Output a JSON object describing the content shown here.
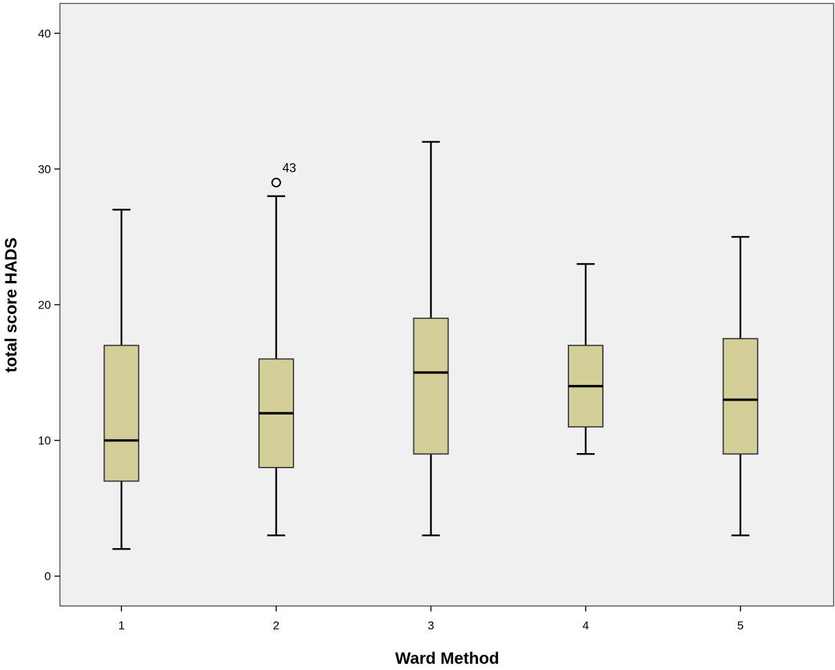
{
  "chart_data": {
    "type": "boxplot",
    "xlabel": "Ward Method",
    "ylabel": "total score HADS",
    "ylim": [
      -2.2,
      42.2
    ],
    "yticks": [
      0,
      10,
      20,
      30,
      40
    ],
    "categories": [
      "1",
      "2",
      "3",
      "4",
      "5"
    ],
    "boxes": [
      {
        "category": "1",
        "min": 2,
        "q1": 7,
        "median": 10,
        "q3": 17,
        "max": 27
      },
      {
        "category": "2",
        "min": 3,
        "q1": 8,
        "median": 12,
        "q3": 16,
        "max": 28
      },
      {
        "category": "3",
        "min": 3,
        "q1": 9,
        "median": 15,
        "q3": 19,
        "max": 32
      },
      {
        "category": "4",
        "min": 9,
        "q1": 11,
        "median": 14,
        "q3": 17,
        "max": 23
      },
      {
        "category": "5",
        "min": 3,
        "q1": 9,
        "median": 13,
        "q3": 17.5,
        "max": 25
      }
    ],
    "outliers": [
      {
        "category": "2",
        "value": 29,
        "label": "43"
      }
    ],
    "grid": false,
    "colors": {
      "box_fill": "#d4cf99",
      "box_stroke": "#3a3a3a",
      "plot_background": "#f0f0f0",
      "frame": "#555555"
    }
  }
}
